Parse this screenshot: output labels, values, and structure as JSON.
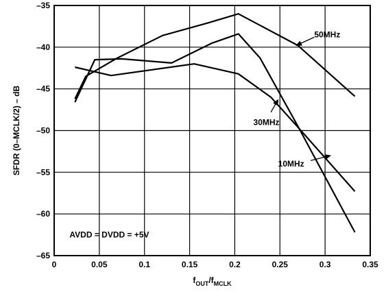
{
  "chart_data": {
    "type": "line",
    "xlabel": {
      "main": "f",
      "sub1": "OUT",
      "sep": "/f",
      "sub2": "MCLK"
    },
    "ylabel": "SFDR (0–MCLK/2) – dB",
    "xlim": [
      0,
      0.35
    ],
    "ylim": [
      -65,
      -35
    ],
    "xticks": [
      0,
      0.05,
      0.1,
      0.15,
      0.2,
      0.25,
      0.3,
      0.35
    ],
    "xtick_labels": [
      "0",
      "0.05",
      "0.1",
      "0.15",
      "0.2",
      "0.25",
      "0.3",
      "0.35"
    ],
    "yticks": [
      -65,
      -60,
      -55,
      -50,
      -45,
      -40,
      -35
    ],
    "ytick_labels": [
      "–65",
      "–60",
      "–55",
      "–50",
      "–45",
      "–40",
      "–35"
    ],
    "grid": true,
    "series": [
      {
        "name": "50MHz",
        "x": [
          0.023,
          0.035,
          0.07,
          0.12,
          0.17,
          0.204,
          0.27,
          0.333
        ],
        "y": [
          -46.2,
          -43.5,
          -41.3,
          -38.6,
          -37.1,
          -36.0,
          -39.8,
          -45.9
        ]
      },
      {
        "name": "30MHz",
        "x": [
          0.023,
          0.045,
          0.075,
          0.13,
          0.175,
          0.204,
          0.228,
          0.27,
          0.333
        ],
        "y": [
          -46.6,
          -41.5,
          -41.4,
          -41.9,
          -39.5,
          -38.4,
          -41.3,
          -49.5,
          -62.2
        ]
      },
      {
        "name": "10MHz",
        "x": [
          0.023,
          0.063,
          0.155,
          0.204,
          0.24,
          0.27,
          0.333
        ],
        "y": [
          -42.4,
          -43.4,
          -42.0,
          -43.2,
          -46.0,
          -49.6,
          -57.3
        ]
      }
    ],
    "annotations": [
      {
        "text": "50MHz",
        "x": 0.288,
        "y": -38.5,
        "anchor": "start",
        "arrow_from": [
          0.288,
          -38.8
        ],
        "arrow_to": [
          0.268,
          -39.8
        ]
      },
      {
        "text": "30MHz",
        "x": 0.235,
        "y": -49.0,
        "anchor": "middle",
        "arrow_from": [
          0.24,
          -47.8
        ],
        "arrow_to": [
          0.248,
          -46.3
        ]
      },
      {
        "text": "10MHz",
        "x": 0.248,
        "y": -54.0,
        "anchor": "start",
        "arrow_from": [
          0.284,
          -53.6
        ],
        "arrow_to": [
          0.306,
          -53.0
        ]
      },
      {
        "text": "AVDD = DVDD = +5V",
        "x": 0.017,
        "y": -62.5,
        "anchor": "start"
      }
    ]
  }
}
